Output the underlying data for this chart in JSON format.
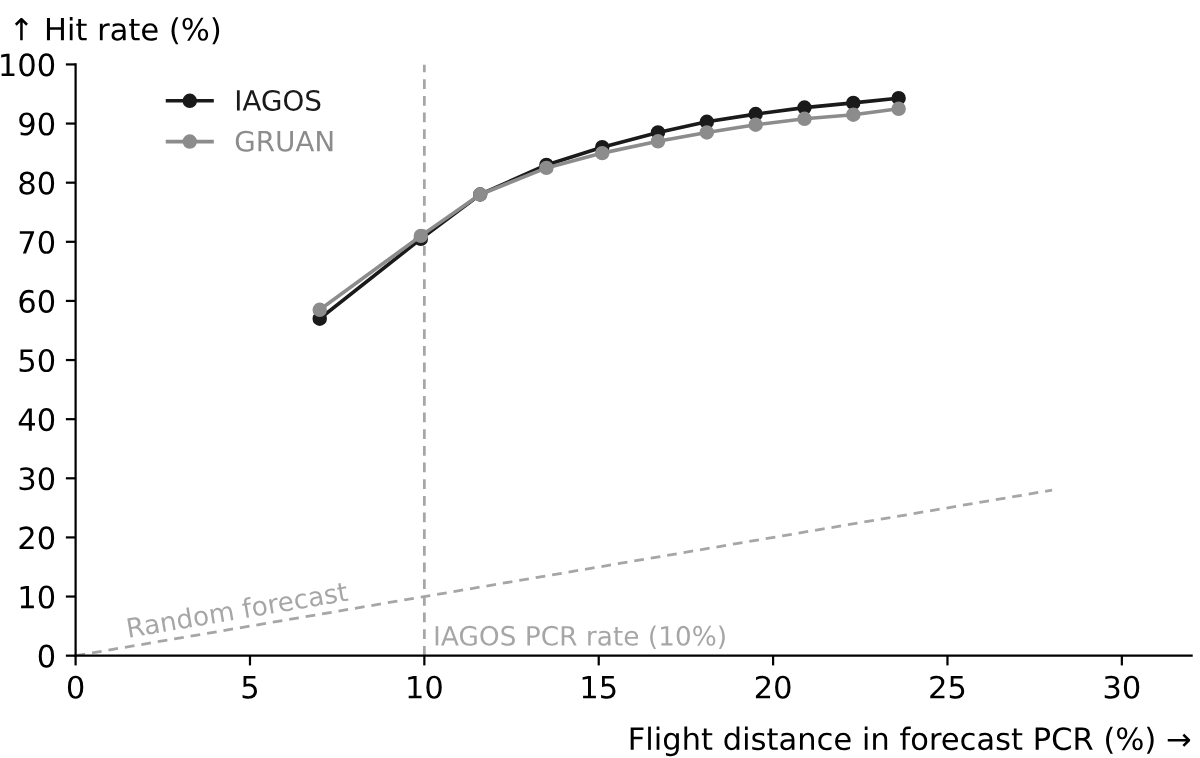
{
  "chart_data": {
    "type": "line",
    "xlabel": "Flight distance in forecast PCR (%) →",
    "ylabel": "↑ Hit rate (%)",
    "xlim": [
      0,
      32
    ],
    "xticks": [
      0,
      5,
      10,
      15,
      20,
      25,
      30
    ],
    "ylim": [
      0,
      100
    ],
    "yticks": [
      0,
      10,
      20,
      30,
      40,
      50,
      60,
      70,
      80,
      90,
      100
    ],
    "marker": "circle",
    "legend": "top left",
    "grid": false,
    "series": [
      {
        "name": "IAGOS",
        "color": "#1a1a1a",
        "x": [
          7,
          9.9,
          11.6,
          13.5,
          15.1,
          16.7,
          18.1,
          19.5,
          20.9,
          22.3,
          23.6
        ],
        "values": [
          57,
          70.5,
          78,
          83,
          86,
          88.5,
          90.3,
          91.6,
          92.7,
          93.5,
          94.3
        ]
      },
      {
        "name": "GRUAN",
        "color": "#8c8c8c",
        "x": [
          7,
          9.9,
          11.6,
          13.5,
          15.1,
          16.7,
          18.1,
          19.5,
          20.9,
          22.3,
          23.6
        ],
        "values": [
          58.5,
          71,
          78,
          82.5,
          85,
          87,
          88.5,
          89.8,
          90.8,
          91.5,
          92.5
        ]
      },
      {
        "color": "#a6a6a6",
        "x": [
          0,
          28
        ],
        "values": [
          0,
          28
        ],
        "line_style": "dashed",
        "marker": "none"
      }
    ],
    "ref_lines": [
      {
        "axis": "x",
        "value": 10,
        "label": "IAGOS PCR rate (10%)",
        "color": "#a6a6a6",
        "line_style": "dashed"
      }
    ],
    "annotations": [
      {
        "text": "Random forecast",
        "x": 1.5,
        "y": 3
      }
    ]
  }
}
